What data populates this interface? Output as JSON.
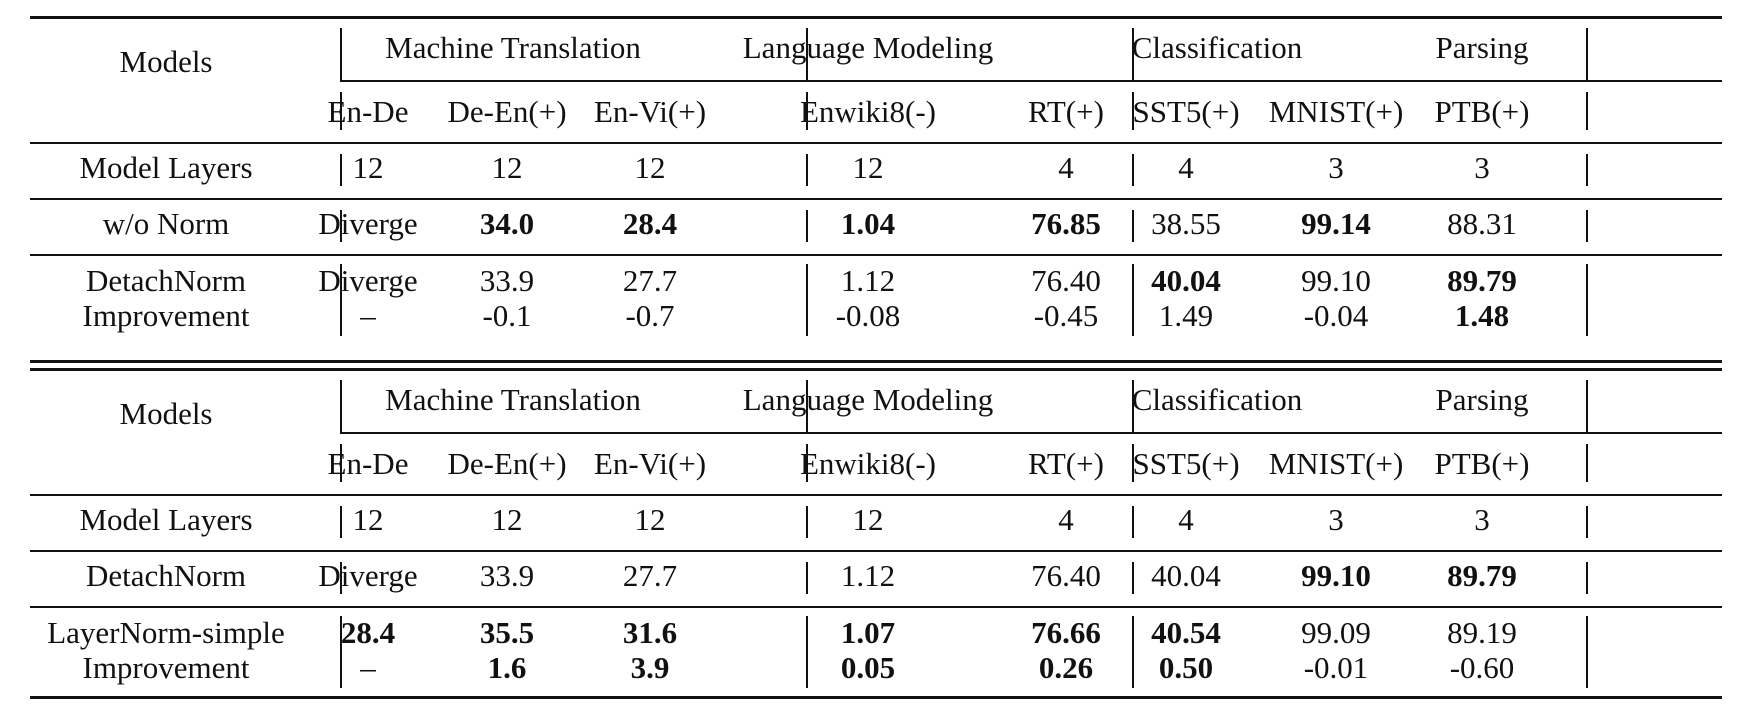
{
  "tables": [
    {
      "models_header": "Models",
      "groups": [
        "Machine Translation",
        "Language Modeling",
        "Classification",
        "Parsing"
      ],
      "columns": [
        "En-De",
        "De-En(+)",
        "En-Vi(+)",
        "Enwiki8(-)",
        "RT(+)",
        "SST5(+)",
        "MNIST(+)",
        "PTB(+)"
      ],
      "rows": [
        {
          "label": "Model Layers",
          "values": [
            "12",
            "12",
            "12",
            "12",
            "4",
            "4",
            "3",
            "3"
          ],
          "bold": []
        },
        {
          "label": "w/o Norm",
          "values": [
            "Diverge",
            "34.0",
            "28.4",
            "1.04",
            "76.85",
            "38.55",
            "99.14",
            "88.31"
          ],
          "bold": [
            1,
            2,
            3,
            4,
            6
          ]
        },
        {
          "label": "DetachNorm",
          "values": [
            "Diverge",
            "33.9",
            "27.7",
            "1.12",
            "76.40",
            "40.04",
            "99.10",
            "89.79"
          ],
          "bold": [
            5,
            7
          ]
        },
        {
          "label": "Improvement",
          "values": [
            "–",
            "-0.1",
            "-0.7",
            "-0.08",
            "-0.45",
            "1.49",
            "-0.04",
            "1.48"
          ],
          "bold": [
            7
          ]
        }
      ]
    },
    {
      "models_header": "Models",
      "groups": [
        "Machine Translation",
        "Language Modeling",
        "Classification",
        "Parsing"
      ],
      "columns": [
        "En-De",
        "De-En(+)",
        "En-Vi(+)",
        "Enwiki8(-)",
        "RT(+)",
        "SST5(+)",
        "MNIST(+)",
        "PTB(+)"
      ],
      "rows": [
        {
          "label": "Model Layers",
          "values": [
            "12",
            "12",
            "12",
            "12",
            "4",
            "4",
            "3",
            "3"
          ],
          "bold": []
        },
        {
          "label": "DetachNorm",
          "values": [
            "Diverge",
            "33.9",
            "27.7",
            "1.12",
            "76.40",
            "40.04",
            "99.10",
            "89.79"
          ],
          "bold": [
            6,
            7
          ]
        },
        {
          "label": "LayerNorm-simple",
          "values": [
            "28.4",
            "35.5",
            "31.6",
            "1.07",
            "76.66",
            "40.54",
            "99.09",
            "89.19"
          ],
          "bold": [
            0,
            1,
            2,
            3,
            4,
            5
          ]
        },
        {
          "label": "Improvement",
          "values": [
            "–",
            "1.6",
            "3.9",
            "0.05",
            "0.26",
            "0.50",
            "-0.01",
            "-0.60"
          ],
          "bold": [
            1,
            2,
            3,
            4,
            5
          ]
        }
      ]
    }
  ]
}
